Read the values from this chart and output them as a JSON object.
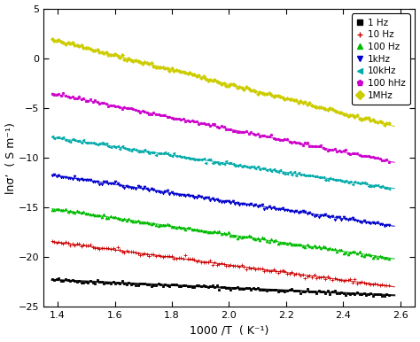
{
  "xlabel": "1000 /T  ( K⁻¹)",
  "ylabel": "lnσ’  ( S m⁻¹)",
  "xlim": [
    1.35,
    2.65
  ],
  "ylim": [
    -25,
    5
  ],
  "xticks": [
    1.4,
    1.6,
    1.8,
    2.0,
    2.2,
    2.4,
    2.6
  ],
  "yticks": [
    -25,
    -20,
    -15,
    -10,
    -5,
    0,
    5
  ],
  "series": [
    {
      "label": "1 Hz",
      "color": "#000000",
      "marker": "s",
      "ms": 2.0,
      "y0": -22.3,
      "slope": -1.3,
      "lw": 1.5
    },
    {
      "label": "10 Hz",
      "color": "#cc0000",
      "marker": "+",
      "ms": 3.5,
      "y0": -18.5,
      "slope": -3.8,
      "lw": 0.8
    },
    {
      "label": "100 Hz",
      "color": "#00bb00",
      "marker": "^",
      "ms": 2.0,
      "y0": -15.2,
      "slope": -4.2,
      "lw": 0.8
    },
    {
      "label": "1kHz",
      "color": "#0000cc",
      "marker": "v",
      "ms": 2.0,
      "y0": -11.8,
      "slope": -4.3,
      "lw": 0.8
    },
    {
      "label": "10kHz",
      "color": "#00aaaa",
      "marker": "<",
      "ms": 2.0,
      "y0": -8.0,
      "slope": -4.3,
      "lw": 0.8
    },
    {
      "label": "100 hHz",
      "color": "#cc00cc",
      "marker": "p",
      "ms": 2.0,
      "y0": -3.6,
      "slope": -5.8,
      "lw": 0.8
    },
    {
      "label": "1MHz",
      "color": "#cccc00",
      "marker": "D",
      "ms": 2.0,
      "y0": 1.8,
      "slope": -7.3,
      "lw": 0.8
    }
  ],
  "legend_labels": [
    "1 Hz",
    "10 Hz",
    "100 Hz",
    "1kHz",
    "10kHz",
    "100 hHz",
    "1MHz"
  ],
  "fig_bg": "#ffffff",
  "ax_bg": "#ffffff"
}
